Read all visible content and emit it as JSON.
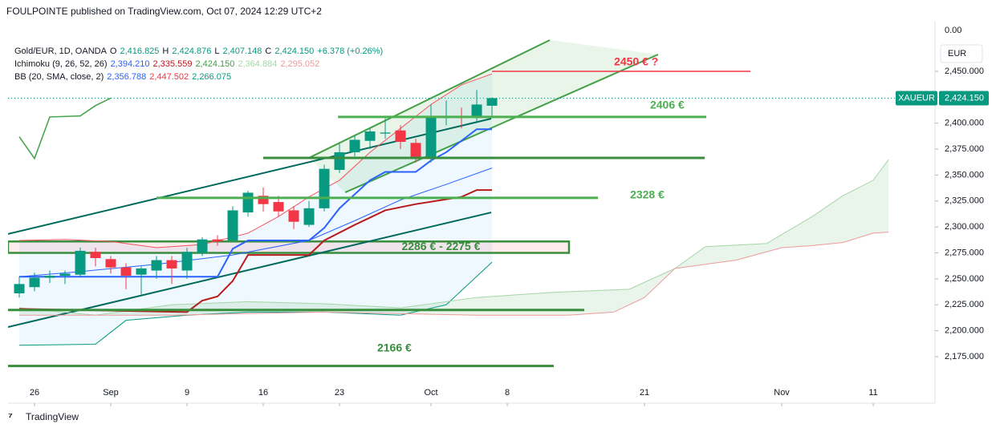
{
  "header": {
    "publisher": "FOULPOINTE published on TradingView.com, Oct 07, 2024 12:29 UTC+2",
    "legend": [
      [
        {
          "text": "Gold/EUR, 1D, OANDA",
          "color": "#131722"
        },
        {
          "text": "O",
          "color": "#131722"
        },
        {
          "text": "2,416.825",
          "color": "#089981"
        },
        {
          "text": "H",
          "color": "#131722"
        },
        {
          "text": "2,424.876",
          "color": "#089981"
        },
        {
          "text": "L",
          "color": "#131722"
        },
        {
          "text": "2,407.148",
          "color": "#089981"
        },
        {
          "text": "C",
          "color": "#131722"
        },
        {
          "text": "2,424.150",
          "color": "#089981"
        },
        {
          "text": "+6.378 (+0.26%)",
          "color": "#089981"
        }
      ],
      [
        {
          "text": "Ichimoku (9, 26, 52, 26)",
          "color": "#131722"
        },
        {
          "text": "2,394.210",
          "color": "#2962ff"
        },
        {
          "text": "2,335.559",
          "color": "#b71c1c"
        },
        {
          "text": "2,424.150",
          "color": "#43a047"
        },
        {
          "text": "2,364.884",
          "color": "#a5d6a7"
        },
        {
          "text": "2,295.052",
          "color": "#ef9a9a"
        }
      ],
      [
        {
          "text": "BB (20, SMA, close, 2)",
          "color": "#131722"
        },
        {
          "text": "2,356.788",
          "color": "#2962ff"
        },
        {
          "text": "2,447.502",
          "color": "#f23645"
        },
        {
          "text": "2,266.075",
          "color": "#089981"
        }
      ]
    ],
    "brand": "TradingView"
  },
  "chart_data": {
    "type": "candlestick",
    "xlim": [
      -1.737,
      59.05
    ],
    "ylim": [
      2132.5,
      2497.1
    ],
    "xticks": [
      {
        "value": 0,
        "label": "26"
      },
      {
        "value": 5,
        "label": "Sep"
      },
      {
        "value": 10,
        "label": "9"
      },
      {
        "value": 15,
        "label": "16"
      },
      {
        "value": 20,
        "label": "23"
      },
      {
        "value": 26,
        "label": "Oct"
      },
      {
        "value": 31,
        "label": "8"
      },
      {
        "value": 40,
        "label": "21"
      },
      {
        "value": 49,
        "label": "Nov"
      },
      {
        "value": 55,
        "label": "11"
      }
    ],
    "yticks": [
      {
        "value": 2175,
        "label": "2,175.000"
      },
      {
        "value": 2200,
        "label": "2,200.000"
      },
      {
        "value": 2225,
        "label": "2,225.000"
      },
      {
        "value": 2250,
        "label": "2,250.000"
      },
      {
        "value": 2275,
        "label": "2,275.000"
      },
      {
        "value": 2300,
        "label": "2,300.000"
      },
      {
        "value": 2325,
        "label": "2,325.000"
      },
      {
        "value": 2350,
        "label": "2,350.000"
      },
      {
        "value": 2375,
        "label": "2,375.000"
      },
      {
        "value": 2400,
        "label": "2,400.000"
      },
      {
        "value": 2425,
        "label": "2,425.000"
      },
      {
        "value": 2450,
        "label": "2,450.000"
      }
    ],
    "top_label": "0.00",
    "currency": "EUR",
    "up_color": "#089981",
    "down_color": "#f23645",
    "x": [
      -1,
      0,
      1,
      2,
      3,
      4,
      5,
      6,
      7,
      8,
      9,
      10,
      11,
      12,
      13,
      14,
      15,
      16,
      17,
      18,
      19,
      20,
      21,
      22,
      23,
      24,
      25,
      26,
      27,
      28,
      29,
      30
    ],
    "open": [
      2236,
      2242,
      2251,
      2253,
      2254,
      2276,
      2269,
      2261,
      2254,
      2258,
      2268,
      2258,
      2275,
      2288,
      2287,
      2314,
      2330,
      2324,
      2316,
      2302,
      2318,
      2355,
      2372,
      2383,
      2390,
      2393,
      2381,
      2366,
      2405,
      2406,
      2406,
      2416.825
    ],
    "high": [
      2252,
      2256,
      2258,
      2258,
      2280,
      2280,
      2272,
      2265,
      2262,
      2272,
      2272,
      2280,
      2290,
      2292,
      2320,
      2335,
      2338,
      2330,
      2320,
      2325,
      2360,
      2380,
      2388,
      2395,
      2405,
      2398,
      2385,
      2418,
      2422,
      2415,
      2432,
      2424.876
    ],
    "low": [
      2232,
      2238,
      2246,
      2245,
      2252,
      2262,
      2255,
      2240,
      2235,
      2250,
      2245,
      2250,
      2272,
      2282,
      2285,
      2310,
      2315,
      2310,
      2298,
      2300,
      2315,
      2352,
      2368,
      2375,
      2385,
      2375,
      2362,
      2362,
      2398,
      2395,
      2400,
      2407.148
    ],
    "close": [
      2245,
      2251,
      2253,
      2255,
      2277,
      2270,
      2261,
      2253,
      2260,
      2268,
      2260,
      2276,
      2288,
      2286,
      2316,
      2333,
      2322,
      2315,
      2305,
      2318,
      2356,
      2372,
      2384,
      2392,
      2391,
      2382,
      2366,
      2407,
      2407,
      2405,
      2418,
      2424.15
    ],
    "lines": [
      {
        "color": "#f7525f",
        "width": 1,
        "x": [
          -1,
          2,
          5,
          8,
          11,
          14,
          16,
          18,
          20,
          22,
          24,
          26,
          28,
          30
        ],
        "values": [
          2287,
          2288,
          2286,
          2280,
          2283,
          2294,
          2310,
          2329,
          2345,
          2372,
          2395,
          2418,
          2437,
          2447.502
        ]
      },
      {
        "color": "#2962ff",
        "width": 1,
        "x": [
          -1,
          3,
          8,
          13,
          18,
          21,
          24,
          27,
          30
        ],
        "values": [
          2252,
          2257,
          2264,
          2273,
          2287,
          2306,
          2326,
          2341,
          2356.788
        ]
      },
      {
        "color": "#089981",
        "width": 1,
        "x": [
          -1,
          4,
          6,
          10,
          14,
          19,
          24,
          27,
          30
        ],
        "values": [
          2186,
          2187,
          2210,
          2215,
          2218,
          2218,
          2215,
          2225,
          2266.075
        ]
      },
      {
        "color": "#a5d6a7",
        "width": 1,
        "x": [
          -1,
          4,
          9,
          14,
          19,
          24,
          29,
          34,
          39,
          42,
          44,
          48,
          51,
          53,
          55,
          56
        ],
        "values": [
          2222,
          2215,
          2225,
          2228,
          2226,
          2222,
          2232,
          2237,
          2240,
          2260,
          2281,
          2284,
          2310,
          2330,
          2345,
          2364.884
        ]
      },
      {
        "color": "#ef9a9a",
        "width": 1,
        "x": [
          -1,
          9,
          19,
          29,
          35,
          38,
          40,
          42,
          46,
          49,
          51,
          53,
          55,
          56
        ],
        "values": [
          2215,
          2215,
          2218,
          2215,
          2215,
          2218,
          2232,
          2260,
          2268,
          2280,
          2282,
          2285,
          2294,
          2295.052
        ]
      },
      {
        "color": "#2962ff",
        "width": 2,
        "x": [
          -1,
          12,
          13,
          14,
          18,
          19,
          20,
          22,
          23,
          25,
          26,
          27,
          29,
          30
        ],
        "values": [
          2252,
          2252,
          2279,
          2287,
          2287,
          2299,
          2318,
          2345,
          2353,
          2353,
          2364,
          2372,
          2394.21,
          2394.21
        ]
      },
      {
        "color": "#b71c1c",
        "width": 2,
        "x": [
          -1,
          10,
          11,
          12,
          13,
          14,
          18,
          19,
          21,
          23,
          25,
          28,
          29,
          30
        ],
        "values": [
          2221,
          2218,
          2229,
          2233,
          2248,
          2273,
          2273,
          2287,
          2302,
          2316,
          2322,
          2329,
          2335.559,
          2335.559
        ]
      },
      {
        "color": "#43a047",
        "width": 1.5,
        "x": [
          -1,
          0,
          1,
          3,
          4,
          5
        ],
        "values": [
          2387,
          2366,
          2406,
          2407,
          2417,
          2424.15
        ]
      }
    ],
    "levels": [
      {
        "value": 2450,
        "label": "2450 € ?",
        "color": "#f23645",
        "x": [
          30,
          46.95
        ]
      },
      {
        "value": 2406,
        "label": "2406 €",
        "color": "#4caf50",
        "x": [
          19.9,
          44.05
        ]
      },
      {
        "value": 2366.6,
        "color": "#388e3c",
        "x": [
          15,
          43.95
        ]
      },
      {
        "value": 2328,
        "label": "2328 €",
        "color": "#4caf50",
        "x": [
          8,
          36.95
        ]
      },
      {
        "value": 2220,
        "color": "#388e3c",
        "x": [
          -1.737,
          36.05
        ]
      },
      {
        "value": 2166,
        "label": "2166 €",
        "color": "#388e3c",
        "x": [
          -1.737,
          34.05
        ]
      }
    ],
    "zone": {
      "values": [
        2275,
        2286
      ],
      "label": "2286 € - 2275 €",
      "color": "#388e3c",
      "x": [
        -1.737,
        35.05
      ]
    },
    "trendlines": [
      {
        "color": "#00695c",
        "x": [
          -1.737,
          29.95
        ],
        "values": [
          2293.2,
          2404.4
        ]
      },
      {
        "color": "#00695c",
        "x": [
          -1.737,
          29.95
        ],
        "values": [
          2203.5,
          2314
        ]
      },
      {
        "color": "#43a047",
        "x": [
          18,
          33.79
        ],
        "values": [
          2366.6,
          2480.1
        ]
      },
      {
        "color": "#43a047",
        "x": [
          20.37,
          40.89
        ],
        "values": [
          2333.3,
          2466.2
        ]
      }
    ],
    "last_price": {
      "symbol": "XAUEUR",
      "value": 2424.15,
      "label": "2,424.150",
      "color": "#089981"
    }
  }
}
